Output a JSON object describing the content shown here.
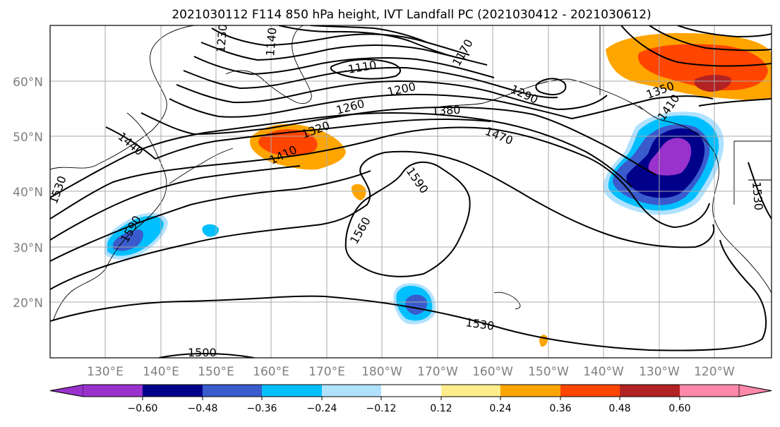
{
  "title": "2021030112 F114 850 hPa height, IVT Landfall PC (2021030412 - 2021030612)",
  "map": {
    "lat_labels": [
      "60°N",
      "50°N",
      "40°N",
      "30°N",
      "20°N"
    ],
    "lon_labels": [
      "130°E",
      "140°E",
      "150°E",
      "160°E",
      "170°E",
      "180°W",
      "170°W",
      "160°W",
      "150°W",
      "140°W",
      "130°W",
      "120°W"
    ],
    "contour_labels": [
      "1230",
      "1140",
      "1110",
      "1170",
      "1200",
      "1290",
      "1260",
      "1380",
      "1350",
      "1320",
      "1440",
      "1410",
      "1470",
      "1530",
      "1590",
      "1560",
      "1530",
      "1500",
      "1530",
      "1590",
      "1410"
    ]
  },
  "colorbar": {
    "tick_labels": [
      "−0.60",
      "−0.48",
      "−0.36",
      "−0.24",
      "−0.12",
      "0.12",
      "0.24",
      "0.36",
      "0.48",
      "0.60"
    ],
    "colors": [
      "#9932cc",
      "#00008b",
      "#3a5bcc",
      "#00bfff",
      "#b0e2ff",
      "#ffffff",
      "#ffec8b",
      "#ffa500",
      "#ff4500",
      "#b22222",
      "#ff88aa"
    ]
  }
}
